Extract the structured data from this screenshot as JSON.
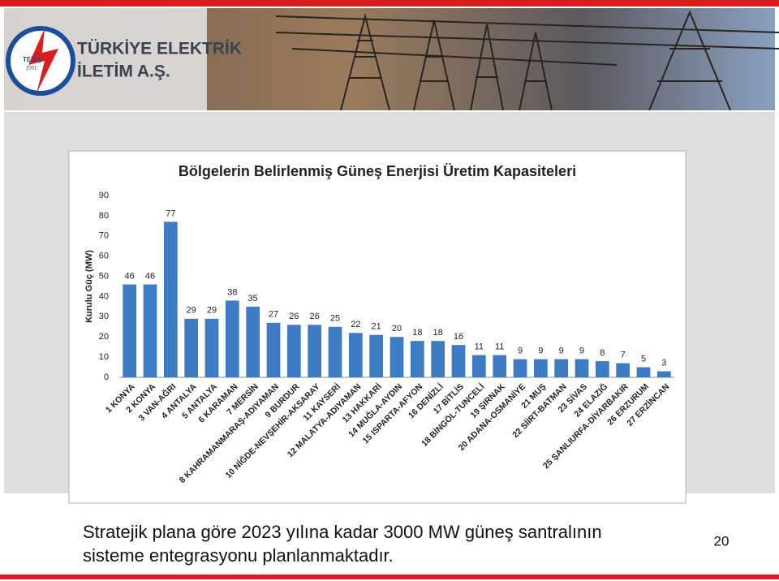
{
  "header": {
    "logo_text": "TEİAŞ",
    "logo_year": "2001",
    "company_line1": "TÜRKİYE ELEKTRİK",
    "company_line2": "İLETİM A.Ş."
  },
  "chart_data": {
    "type": "bar",
    "title": "Bölgelerin Belirlenmiş Güneş Enerjisi Üretim Kapasiteleri",
    "y_label": "Kurulu Güç (MW)",
    "categories": [
      "1 KONYA",
      "2 KONYA",
      "3 VAN-AĞRI",
      "4 ANTALYA",
      "5 ANTALYA",
      "6 KARAMAN",
      "7 MERSİN",
      "8 KAHRAMANMARAŞ-ADIYAMAN",
      "9 BURDUR",
      "10 NİĞDE-NEVŞEHİR-AKSARAY",
      "11 KAYSERİ",
      "12 MALATYA-ADIYAMAN",
      "13 HAKKARİ",
      "14 MUĞLA-AYDIN",
      "15 ISPARTA-AFYON",
      "16 DENİZLİ",
      "17 BİTLİS",
      "18 BİNGÖL-TUNCELİ",
      "19 ŞIRNAK",
      "20 ADANA-OSMANİYE",
      "21 MUŞ",
      "22 SİİRT-BATMAN",
      "23 SİVAS",
      "24 ELAZIĞ",
      "25 ŞANLIURFA-DİYARBAKIR",
      "26 ERZURUM",
      "27 ERZİNCAN"
    ],
    "values": [
      46,
      46,
      77,
      29,
      29,
      38,
      35,
      27,
      26,
      26,
      25,
      22,
      21,
      20,
      18,
      18,
      16,
      11,
      11,
      9,
      9,
      9,
      9,
      8,
      7,
      5,
      3
    ],
    "color": "#3d7cc4",
    "ylim": [
      0,
      90
    ],
    "yticks": [
      0,
      10,
      20,
      30,
      40,
      50,
      60,
      70,
      80,
      90
    ],
    "grid": false
  },
  "caption": {
    "line1": "Stratejik plana göre 2023 yılına kadar 3000 MW güneş santralının",
    "line2": "sisteme entegrasyonu planlanmaktadır."
  },
  "page_number": "20"
}
